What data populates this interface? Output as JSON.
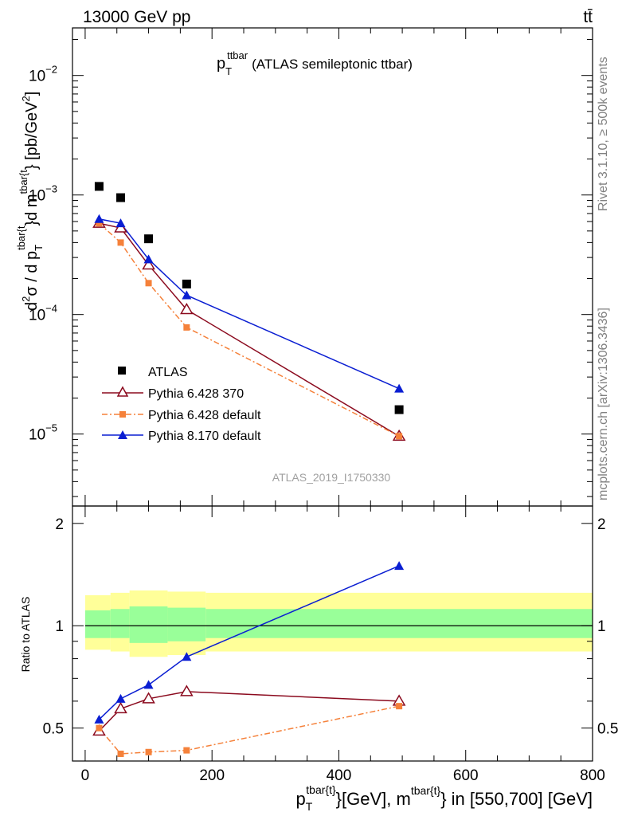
{
  "header": {
    "left": "13000 GeV pp",
    "right": "tt̄"
  },
  "side_labels": {
    "rivet": "Rivet 3.1.10, ≥ 500k events",
    "mcplots": "mcplots.cern.ch [arXiv:1306.3436]"
  },
  "colors": {
    "atlas": "#000000",
    "p6_370": "#8b0a1e",
    "p6_default": "#f5813a",
    "p8_default": "#0a1ed2",
    "band_outer": "#ffff99",
    "band_inner": "#99ff99"
  },
  "chart_data": [
    {
      "type": "scatter",
      "panel": "main",
      "title": {
        "main": "p",
        "sub": "T",
        "sup": "ttbar",
        "rest": "(ATLAS semileptonic ttbar)"
      },
      "ylabel": "d²σ / d p_T^{tbar{t}}d m^{tbar{t}} [pb/GeV²]",
      "ylabel_parts": {
        "d1": "d",
        "sup2": "2",
        "sigma": "σ  /  d p",
        "subT": "T",
        "supA": "tbar{t",
        "mid": "}d m",
        "supB": "tbar{t",
        "end": "} [pb/GeV",
        "sup2b": "2",
        "close": "]"
      },
      "yscale": "log",
      "ylim": [
        2.5e-06,
        0.025
      ],
      "xlim": [
        -20,
        800
      ],
      "yticks": [
        {
          "value": 1e-05,
          "base": "10",
          "exp": "−5"
        },
        {
          "value": 0.0001,
          "base": "10",
          "exp": "−4"
        },
        {
          "value": 0.001,
          "base": "10",
          "exp": "−3"
        },
        {
          "value": 0.01,
          "base": "10",
          "exp": "−2"
        }
      ],
      "watermark": "ATLAS_2019_I1750330",
      "legend_position": "bottom-left",
      "series": [
        {
          "name": "ATLAS",
          "x": [
            22,
            56,
            100,
            160,
            495
          ],
          "y": [
            0.00118,
            0.00095,
            0.00043,
            0.00018,
            1.6e-05
          ]
        },
        {
          "name": "Pythia 6.428 370",
          "x": [
            22,
            56,
            100,
            160,
            495
          ],
          "y": [
            0.00058,
            0.00053,
            0.00026,
            0.00011,
            9.6e-06
          ]
        },
        {
          "name": "Pythia 6.428 default",
          "x": [
            22,
            56,
            100,
            160,
            495
          ],
          "y": [
            0.00058,
            0.0004,
            0.000183,
            7.8e-05,
            9.6e-06
          ]
        },
        {
          "name": "Pythia 8.170 default",
          "x": [
            22,
            56,
            100,
            160,
            495
          ],
          "y": [
            0.00063,
            0.00058,
            0.00029,
            0.000145,
            2.4e-05
          ]
        }
      ]
    },
    {
      "type": "line",
      "panel": "ratio",
      "ylabel": "Ratio to ATLAS",
      "ylim": [
        0.4,
        2.25
      ],
      "xlim": [
        -20,
        800
      ],
      "yticks": [
        {
          "value": 0.5,
          "label": "0.5"
        },
        {
          "value": 1,
          "label": "1"
        },
        {
          "value": 2,
          "label": "2"
        }
      ],
      "xticks": [
        {
          "value": 0,
          "label": "0"
        },
        {
          "value": 200,
          "label": "200"
        },
        {
          "value": 400,
          "label": "400"
        },
        {
          "value": 600,
          "label": "600"
        },
        {
          "value": 800,
          "label": "800"
        }
      ],
      "xlabel": {
        "p": "p",
        "subT": "T",
        "supA": "tbar{t}",
        "mid": "}[GeV], m",
        "supB": "tbar{t}",
        "end": "} in [550,700] [GeV]"
      },
      "bands": {
        "edges": [
          0,
          40,
          70,
          130,
          190,
          800
        ],
        "outer": [
          [
            0.85,
            1.23
          ],
          [
            0.84,
            1.25
          ],
          [
            0.81,
            1.27
          ],
          [
            0.82,
            1.26
          ],
          [
            0.84,
            1.25
          ]
        ],
        "inner": [
          [
            0.92,
            1.11
          ],
          [
            0.92,
            1.12
          ],
          [
            0.89,
            1.14
          ],
          [
            0.9,
            1.13
          ],
          [
            0.92,
            1.12
          ]
        ]
      },
      "series": [
        {
          "name": "Pythia 6.428 370",
          "x": [
            22,
            56,
            100,
            160,
            495
          ],
          "y": [
            0.49,
            0.57,
            0.61,
            0.64,
            0.6
          ]
        },
        {
          "name": "Pythia 6.428 default",
          "x": [
            22,
            56,
            100,
            160,
            495
          ],
          "y": [
            0.5,
            0.42,
            0.425,
            0.43,
            0.58
          ]
        },
        {
          "name": "Pythia 8.170 default",
          "x": [
            22,
            56,
            100,
            160,
            495
          ],
          "y": [
            0.53,
            0.61,
            0.67,
            0.81,
            1.5
          ]
        }
      ]
    }
  ]
}
